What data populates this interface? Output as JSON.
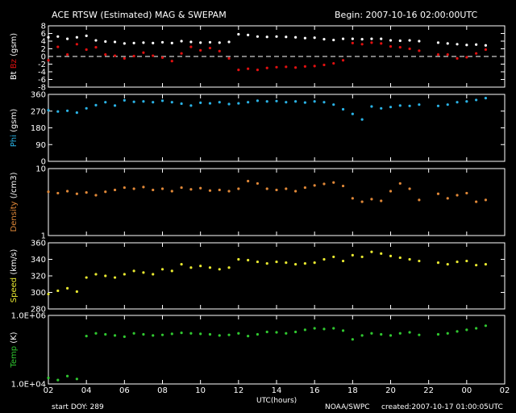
{
  "header": {
    "title": "ACE RTSW (Estimated) MAG & SWEPAM",
    "begin": "Begin: 2007-10-16 02:00:00UTC"
  },
  "footer": {
    "start_doy": "start DOY: 289",
    "agency": "NOAA/SWPC",
    "created": "created:2007-10-17 01:00:05UTC"
  },
  "colors": {
    "background": "#000000",
    "bt": "#ffffff",
    "bz": "#e01010",
    "phi": "#2ab3e6",
    "density": "#e08838",
    "speed": "#e8e830",
    "temp": "#30c830"
  },
  "chart_data": {
    "type": "scatter",
    "x_axis": {
      "label": "UTC(hours)",
      "range": [
        2,
        26
      ],
      "ticks": [
        "02",
        "04",
        "06",
        "08",
        "10",
        "12",
        "14",
        "16",
        "18",
        "20",
        "22",
        "00",
        "02"
      ]
    },
    "panels": [
      {
        "id": "mag",
        "ylabel_parts": [
          {
            "text": "Bt",
            "color": "#ffffff"
          },
          {
            "text": "Bz",
            "color": "#e01010"
          },
          {
            "text": "(gsm)",
            "color": "#ffffff"
          }
        ],
        "ylim": [
          -8,
          8
        ],
        "yticks": [
          "-8",
          "-6",
          "-4",
          "-2",
          "0",
          "2",
          "4",
          "6",
          "8"
        ],
        "yvals": [
          -8,
          -6,
          -4,
          -2,
          0,
          2,
          4,
          6,
          8
        ],
        "zero_line": true,
        "series": [
          {
            "name": "Bt",
            "color": "#ffffff",
            "x": [
              2.0,
              2.5,
              3.0,
              3.5,
              4.0,
              4.5,
              5.0,
              5.5,
              6.0,
              6.5,
              7.0,
              7.5,
              8.0,
              8.5,
              9.0,
              9.5,
              10.0,
              10.5,
              11.0,
              11.5,
              12.0,
              12.5,
              13.0,
              13.5,
              14.0,
              14.5,
              15.0,
              15.5,
              16.0,
              16.5,
              17.0,
              17.5,
              18.0,
              18.5,
              19.0,
              19.5,
              20.0,
              20.5,
              21.0,
              21.5,
              22.5,
              23.0,
              23.5,
              24.0,
              24.5,
              25.0
            ],
            "y": [
              5.0,
              5.2,
              4.6,
              5.0,
              5.4,
              4.2,
              3.9,
              3.8,
              3.4,
              3.5,
              3.6,
              3.5,
              3.7,
              3.5,
              4.0,
              3.8,
              3.6,
              3.7,
              3.6,
              3.8,
              5.8,
              5.6,
              5.2,
              5.1,
              5.2,
              5.1,
              5.0,
              4.8,
              4.9,
              4.5,
              4.3,
              4.6,
              4.6,
              4.5,
              4.6,
              4.6,
              4.2,
              4.1,
              4.2,
              4.0,
              3.6,
              3.4,
              3.2,
              3.0,
              3.1,
              2.9
            ]
          },
          {
            "name": "Bz",
            "color": "#e01010",
            "x": [
              2.0,
              2.5,
              3.0,
              3.5,
              4.0,
              4.5,
              5.0,
              5.5,
              6.0,
              6.5,
              7.0,
              7.5,
              8.0,
              8.5,
              9.0,
              9.5,
              10.0,
              10.5,
              11.0,
              11.5,
              12.0,
              12.5,
              13.0,
              13.5,
              14.0,
              14.5,
              15.0,
              15.5,
              16.0,
              16.5,
              17.0,
              17.5,
              18.0,
              18.5,
              19.0,
              19.5,
              20.0,
              20.5,
              21.0,
              21.5,
              22.5,
              23.0,
              23.5,
              24.0,
              24.5,
              25.0
            ],
            "y": [
              -1.0,
              2.5,
              0.5,
              3.2,
              1.8,
              2.4,
              0.5,
              0.2,
              -0.5,
              0.1,
              1.0,
              0.2,
              -0.3,
              -1.2,
              0.8,
              2.5,
              1.6,
              2.2,
              1.4,
              -0.5,
              -3.5,
              -3.2,
              -3.5,
              -3.0,
              -2.8,
              -2.7,
              -2.9,
              -2.6,
              -2.5,
              -2.2,
              -1.8,
              -1.0,
              3.5,
              3.2,
              3.6,
              3.4,
              2.6,
              2.4,
              2.0,
              1.5,
              0.5,
              0.5,
              -0.5,
              -0.2,
              0.8,
              1.8
            ]
          }
        ]
      },
      {
        "id": "phi",
        "ylabel_parts": [
          {
            "text": "Phi",
            "color": "#2ab3e6"
          },
          {
            "text": "(gsm)",
            "color": "#ffffff"
          }
        ],
        "ylim": [
          0,
          360
        ],
        "yticks": [
          "0",
          "90",
          "180",
          "270",
          "360"
        ],
        "yvals": [
          0,
          90,
          180,
          270,
          360
        ],
        "series": [
          {
            "name": "Phi",
            "color": "#2ab3e6",
            "x": [
              2.0,
              2.5,
              3.0,
              3.5,
              4.0,
              4.5,
              5.0,
              5.5,
              6.0,
              6.5,
              7.0,
              7.5,
              8.0,
              8.5,
              9.0,
              9.5,
              10.0,
              10.5,
              11.0,
              11.5,
              12.0,
              12.5,
              13.0,
              13.5,
              14.0,
              14.5,
              15.0,
              15.5,
              16.0,
              16.5,
              17.0,
              17.5,
              18.0,
              18.5,
              19.0,
              19.5,
              20.0,
              20.5,
              21.0,
              21.5,
              22.5,
              23.0,
              23.5,
              24.0,
              24.5,
              25.0
            ],
            "y": [
              275,
              268,
              272,
              262,
              285,
              302,
              318,
              300,
              328,
              320,
              322,
              318,
              326,
              318,
              310,
              300,
              315,
              312,
              318,
              308,
              312,
              318,
              326,
              322,
              324,
              318,
              322,
              316,
              322,
              318,
              305,
              280,
              255,
              225,
              295,
              285,
              292,
              300,
              298,
              305,
              298,
              305,
              318,
              322,
              330,
              340
            ]
          }
        ]
      },
      {
        "id": "density",
        "ylabel_parts": [
          {
            "text": "Density",
            "color": "#e08838"
          },
          {
            "text": "(/cm3)",
            "color": "#ffffff"
          }
        ],
        "ylim": [
          1,
          10
        ],
        "log": true,
        "yticks": [
          "1",
          "10"
        ],
        "yvals": [
          1,
          10
        ],
        "series": [
          {
            "name": "Density",
            "color": "#e08838",
            "x": [
              2.0,
              2.5,
              3.0,
              3.5,
              4.0,
              4.5,
              5.0,
              5.5,
              6.0,
              6.5,
              7.0,
              7.5,
              8.0,
              8.5,
              9.0,
              9.5,
              10.0,
              10.5,
              11.0,
              11.5,
              12.0,
              12.5,
              13.0,
              13.5,
              14.0,
              14.5,
              15.0,
              15.5,
              16.0,
              16.5,
              17.0,
              17.5,
              18.0,
              18.5,
              19.0,
              19.5,
              20.0,
              20.5,
              21.0,
              21.5,
              22.5,
              23.0,
              23.5,
              24.0,
              24.5,
              25.0
            ],
            "y": [
              4.5,
              4.3,
              4.6,
              4.2,
              4.4,
              4.0,
              4.5,
              4.8,
              5.2,
              5.0,
              5.3,
              4.8,
              5.0,
              4.6,
              5.2,
              4.9,
              5.1,
              4.7,
              4.8,
              4.6,
              5.0,
              6.5,
              6.0,
              5.0,
              4.8,
              5.0,
              4.6,
              5.2,
              5.6,
              5.9,
              6.2,
              5.5,
              3.6,
              3.2,
              3.5,
              3.3,
              4.6,
              6.0,
              5.0,
              3.4,
              4.2,
              3.6,
              4.0,
              4.3,
              3.2,
              3.4
            ]
          }
        ]
      },
      {
        "id": "speed",
        "ylabel_parts": [
          {
            "text": "Speed",
            "color": "#e8e830"
          },
          {
            "text": "(km/s)",
            "color": "#ffffff"
          }
        ],
        "ylim": [
          280,
          360
        ],
        "yticks": [
          "280",
          "300",
          "320",
          "340",
          "360"
        ],
        "yvals": [
          280,
          300,
          320,
          340,
          360
        ],
        "series": [
          {
            "name": "Speed",
            "color": "#e8e830",
            "x": [
              2.0,
              2.5,
              3.0,
              3.5,
              4.0,
              4.5,
              5.0,
              5.5,
              6.0,
              6.5,
              7.0,
              7.5,
              8.0,
              8.5,
              9.0,
              9.5,
              10.0,
              10.5,
              11.0,
              11.5,
              12.0,
              12.5,
              13.0,
              13.5,
              14.0,
              14.5,
              15.0,
              15.5,
              16.0,
              16.5,
              17.0,
              17.5,
              18.0,
              18.5,
              19.0,
              19.5,
              20.0,
              20.5,
              21.0,
              21.5,
              22.5,
              23.0,
              23.5,
              24.0,
              24.5,
              25.0
            ],
            "y": [
              298,
              302,
              305,
              301,
              318,
              322,
              320,
              318,
              322,
              326,
              324,
              322,
              328,
              326,
              334,
              330,
              332,
              330,
              328,
              330,
              340,
              339,
              337,
              335,
              337,
              336,
              334,
              335,
              336,
              340,
              343,
              338,
              345,
              343,
              349,
              347,
              344,
              342,
              340,
              338,
              336,
              334,
              337,
              338,
              333,
              334
            ]
          }
        ]
      },
      {
        "id": "temp",
        "ylabel_parts": [
          {
            "text": "Temp",
            "color": "#30c830"
          },
          {
            "text": "(K)",
            "color": "#ffffff"
          }
        ],
        "ylim": [
          10000,
          1000000
        ],
        "log": true,
        "yticks": [
          "1.0E+04",
          "1.0E+06"
        ],
        "yvals": [
          10000,
          1000000
        ],
        "series": [
          {
            "name": "Temp",
            "color": "#30c830",
            "x": [
              2.0,
              2.5,
              3.0,
              3.5,
              4.0,
              4.5,
              5.0,
              5.5,
              6.0,
              6.5,
              7.0,
              7.5,
              8.0,
              8.5,
              9.0,
              9.5,
              10.0,
              10.5,
              11.0,
              11.5,
              12.0,
              12.5,
              13.0,
              13.5,
              14.0,
              14.5,
              15.0,
              15.5,
              16.0,
              16.5,
              17.0,
              17.5,
              18.0,
              18.5,
              19.0,
              19.5,
              20.0,
              20.5,
              21.0,
              21.5,
              22.5,
              23.0,
              23.5,
              24.0,
              24.5,
              25.0
            ],
            "y": [
              15000,
              13000,
              17000,
              14000,
              250000,
              300000,
              280000,
              260000,
              240000,
              300000,
              280000,
              260000,
              270000,
              290000,
              310000,
              300000,
              290000,
              280000,
              260000,
              270000,
              300000,
              250000,
              280000,
              330000,
              320000,
              300000,
              330000,
              380000,
              420000,
              400000,
              420000,
              360000,
              200000,
              260000,
              300000,
              280000,
              260000,
              300000,
              320000,
              270000,
              280000,
              300000,
              340000,
              380000,
              420000,
              500000
            ]
          }
        ]
      }
    ]
  }
}
